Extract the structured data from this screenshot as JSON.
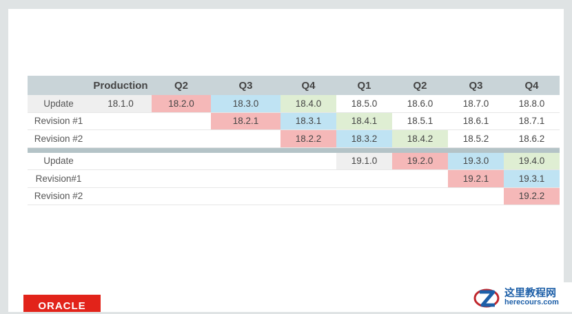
{
  "table": {
    "headers": [
      "",
      "Production",
      "Q2",
      "Q3",
      "Q4",
      "Q1",
      "Q2",
      "Q3",
      "Q4"
    ],
    "rows_top": [
      {
        "label": "Update",
        "cells": [
          "18.1.0",
          "18.2.0",
          "18.3.0",
          "18.4.0",
          "18.5.0",
          "18.6.0",
          "18.7.0",
          "18.8.0"
        ]
      },
      {
        "label": "Revision #1",
        "cells": [
          "",
          "",
          "18.2.1",
          "18.3.1",
          "18.4.1",
          "18.5.1",
          "18.6.1",
          "18.7.1"
        ]
      },
      {
        "label": "Revision #2",
        "cells": [
          "",
          "",
          "",
          "18.2.2",
          "18.3.2",
          "18.4.2",
          "18.5.2",
          "18.6.2"
        ]
      }
    ],
    "rows_bottom": [
      {
        "label": "Update",
        "cells": [
          "",
          "",
          "",
          "",
          "19.1.0",
          "19.2.0",
          "19.3.0",
          "19.4.0"
        ]
      },
      {
        "label": "Revision#1",
        "cells": [
          "",
          "",
          "",
          "",
          "",
          "",
          "19.2.1",
          "19.3.1"
        ]
      },
      {
        "label": "Revision #2",
        "cells": [
          "",
          "",
          "",
          "",
          "",
          "",
          "",
          "19.2.2"
        ]
      }
    ]
  },
  "colors": {
    "gray": "#efefef",
    "pink": "#f5b8b8",
    "blue": "#bfe3f3",
    "green": "#dfeed3",
    "header": "#c9d4d8",
    "separator": "#b4c3c7"
  },
  "logo": {
    "text": "ORACLE"
  },
  "watermark": {
    "cn": "这里教程网",
    "en": "herecours.com"
  }
}
